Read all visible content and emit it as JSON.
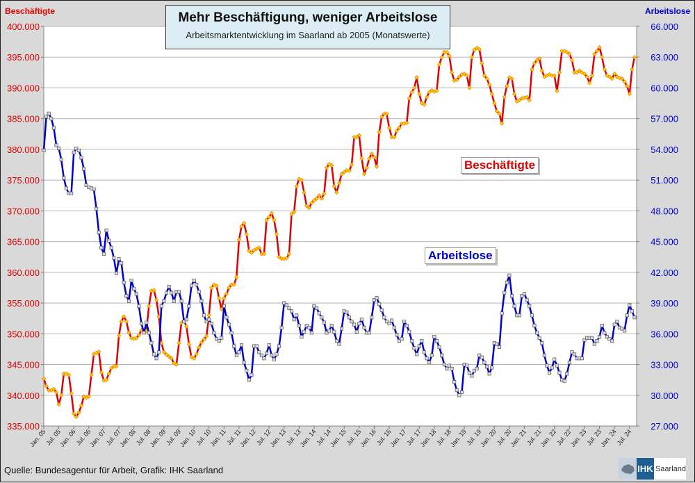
{
  "title": "Mehr Beschäftigung, weniger Arbeitslose",
  "subtitle": "Arbeitsmarktentwicklung im Saarland ab 2005 (Monatswerte)",
  "source": "Quelle: Bundesagentur für Arbeit, Grafik: IHK Saarland",
  "logo": {
    "ihk": "IHK",
    "region": "Saarland"
  },
  "chart_data": {
    "type": "line",
    "title": "Mehr Beschäftigung, weniger Arbeitslose",
    "subtitle": "Arbeitsmarktentwicklung im Saarland ab 2005 (Monatswerte)",
    "x_start": "2005-01",
    "x_frequency": "monthly",
    "x_tick_labels": [
      "Jan. 05",
      "Jul. 05",
      "Jan. 06",
      "Jul. 06",
      "Jan. 07",
      "Jul. 07",
      "Jan. 08",
      "Jul. 08",
      "Jan. 09",
      "Jul. 09",
      "Jan. 10",
      "Jul. 10",
      "Jan. 11",
      "Jul. 11",
      "Jan. 12",
      "Jul. 12",
      "Jan. 13",
      "Jul. 13",
      "Jan. 14",
      "Jul. 14",
      "Jan. 15",
      "Jul. 15",
      "Jan. 16",
      "Jul. 16",
      "Jan. 17",
      "Jul. 17",
      "Jan. 18",
      "Jul. 18",
      "Jan. 19",
      "Jul. 19",
      "Jan. 20",
      "Jul. 20",
      "Jan. 21",
      "Jul. 21",
      "Jan. 22",
      "Jul. 22",
      "Jan. 23",
      "Jul. 23",
      "Jan. 24",
      "Jul. 24"
    ],
    "value_unit_multiplier": 1000,
    "left_axis": {
      "label": "Beschäftigte",
      "range": [
        335000,
        400000
      ],
      "step": 5000,
      "ticks": [
        "335.000",
        "340.000",
        "345.000",
        "350.000",
        "355.000",
        "360.000",
        "365.000",
        "370.000",
        "375.000",
        "380.000",
        "385.000",
        "390.000",
        "395.000",
        "400.000"
      ]
    },
    "right_axis": {
      "label": "Arbeitslose",
      "range": [
        27000,
        66000
      ],
      "step": 3000,
      "ticks": [
        "27.000",
        "30.000",
        "33.000",
        "36.000",
        "39.000",
        "42.000",
        "45.000",
        "48.000",
        "51.000",
        "54.000",
        "57.000",
        "60.000",
        "63.000",
        "66.000"
      ]
    },
    "grid": true,
    "series": [
      {
        "name": "Beschäftigte",
        "label": "Beschäftigte",
        "axis": "left",
        "color": "#e00000",
        "marker_fill": "#ffd700",
        "marker_stroke": "#f08000",
        "values": [
          342.7,
          341.5,
          340.8,
          340.8,
          341.0,
          340.5,
          338.5,
          340.0,
          343.5,
          343.5,
          343.3,
          340.3,
          337.0,
          336.5,
          337.2,
          338.3,
          339.8,
          339.6,
          339.8,
          343.3,
          346.7,
          346.9,
          347.1,
          343.7,
          342.4,
          342.5,
          343.5,
          344.4,
          344.7,
          344.7,
          349.7,
          352.0,
          352.8,
          352.0,
          350.2,
          349.3,
          349.2,
          349.3,
          349.8,
          350.6,
          350.5,
          350.5,
          354.5,
          357.0,
          357.1,
          355.5,
          352.8,
          348.5,
          347.0,
          346.6,
          346.3,
          346.0,
          345.2,
          345.0,
          348.5,
          351.8,
          352.2,
          351.2,
          348.3,
          346.2,
          346.0,
          346.7,
          347.8,
          348.6,
          349.1,
          349.6,
          353.0,
          357.5,
          358.0,
          357.8,
          355.8,
          354.0,
          355.8,
          356.5,
          357.5,
          358.0,
          358.0,
          359.2,
          365.3,
          367.5,
          368.0,
          366.2,
          363.5,
          363.2,
          363.6,
          363.8,
          364.0,
          363.0,
          363.0,
          368.5,
          369.0,
          369.6,
          368.5,
          366.2,
          362.5,
          362.2,
          362.2,
          362.3,
          363.0,
          369.5,
          369.8,
          374.0,
          375.2,
          375.0,
          373.0,
          370.8,
          370.5,
          371.3,
          371.7,
          372.0,
          372.5,
          372.0,
          372.8,
          377.0,
          377.6,
          377.4,
          374.0,
          373.0,
          374.5,
          376.0,
          376.3,
          376.6,
          376.5,
          377.5,
          382.0,
          382.0,
          382.3,
          378.5,
          376.0,
          377.0,
          378.5,
          379.3,
          378.7,
          377.2,
          382.8,
          385.3,
          385.8,
          385.8,
          383.5,
          382.0,
          382.0,
          383.0,
          383.5,
          384.2,
          384.2,
          384.3,
          388.3,
          389.3,
          390.0,
          391.7,
          389.0,
          387.5,
          387.3,
          388.5,
          389.3,
          389.6,
          389.4,
          389.5,
          393.8,
          395.0,
          395.8,
          395.8,
          395.2,
          392.5,
          391.2,
          391.3,
          391.8,
          392.2,
          392.3,
          392.0,
          390.0,
          395.0,
          396.2,
          396.5,
          396.3,
          394.0,
          392.0,
          391.5,
          390.5,
          389.0,
          387.5,
          386.2,
          385.8,
          384.2,
          388.5,
          390.3,
          391.7,
          391.5,
          389.0,
          387.8,
          388.0,
          388.3,
          388.4,
          388.5,
          388.0,
          393.0,
          394.0,
          394.5,
          394.8,
          392.8,
          391.8,
          392.0,
          392.2,
          392.0,
          392.0,
          389.5,
          392.5,
          396.0,
          396.0,
          395.8,
          395.5,
          394.5,
          392.5,
          392.5,
          392.8,
          392.5,
          392.3,
          391.8,
          390.8,
          392.0,
          395.5,
          396.0,
          396.6,
          395.0,
          393.0,
          392.0,
          391.8,
          391.5,
          392.3,
          391.8,
          391.6,
          391.5,
          391.0,
          390.3,
          389.0,
          393.0,
          395.0
        ]
      },
      {
        "name": "Arbeitslose",
        "label": "Arbeitslose",
        "axis": "right",
        "color": "#0000cc",
        "marker_fill": "#d8d8e0",
        "marker_stroke": "#555555",
        "values": [
          53.9,
          57.2,
          57.5,
          57.0,
          56.1,
          54.4,
          54.1,
          53.0,
          51.2,
          50.2,
          49.7,
          49.7,
          53.7,
          54.1,
          53.9,
          53.2,
          52.1,
          50.5,
          50.3,
          50.2,
          50.1,
          48.2,
          45.9,
          44.4,
          43.8,
          46.1,
          45.1,
          44.4,
          43.4,
          41.9,
          43.3,
          42.9,
          41.0,
          39.7,
          39.2,
          41.2,
          40.4,
          39.9,
          38.7,
          37.0,
          36.1,
          37.1,
          36.1,
          35.1,
          34.0,
          33.6,
          34.2,
          38.7,
          39.2,
          40.0,
          40.6,
          40.0,
          39.2,
          40.1,
          40.1,
          39.2,
          37.2,
          37.4,
          38.7,
          40.7,
          41.2,
          40.8,
          40.1,
          39.2,
          37.8,
          37.2,
          37.4,
          37.0,
          36.1,
          35.5,
          35.3,
          35.6,
          38.7,
          37.6,
          36.9,
          36.1,
          34.8,
          33.9,
          34.2,
          34.9,
          33.2,
          32.4,
          31.5,
          32.0,
          34.8,
          34.8,
          34.2,
          33.9,
          33.6,
          34.1,
          34.9,
          33.9,
          33.5,
          34.0,
          34.8,
          36.6,
          39.0,
          38.8,
          38.5,
          38.2,
          37.4,
          37.8,
          36.8,
          35.7,
          36.2,
          36.8,
          36.6,
          36.1,
          38.7,
          38.5,
          38.0,
          37.6,
          37.1,
          36.1,
          36.3,
          36.8,
          36.2,
          35.3,
          35.0,
          36.5,
          38.2,
          38.1,
          37.6,
          37.2,
          36.9,
          36.2,
          37.0,
          37.4,
          36.6,
          36.1,
          36.1,
          37.6,
          39.3,
          39.5,
          38.9,
          38.3,
          37.6,
          37.2,
          37.0,
          37.3,
          36.6,
          35.9,
          35.3,
          35.5,
          37.2,
          36.8,
          36.2,
          35.3,
          34.6,
          34.0,
          34.8,
          35.3,
          34.2,
          33.6,
          33.2,
          33.9,
          35.7,
          35.3,
          34.7,
          33.9,
          33.0,
          32.6,
          32.9,
          32.6,
          31.3,
          30.5,
          30.0,
          30.3,
          33.0,
          32.9,
          32.2,
          31.9,
          32.4,
          32.6,
          33.9,
          33.7,
          33.2,
          32.8,
          32.1,
          32.7,
          35.1,
          35.0,
          34.7,
          38.0,
          40.0,
          41.0,
          41.7,
          39.7,
          38.7,
          37.8,
          37.8,
          39.7,
          39.9,
          39.3,
          38.7,
          37.8,
          36.8,
          36.1,
          35.6,
          35.1,
          33.9,
          32.9,
          32.2,
          32.7,
          33.5,
          32.9,
          32.2,
          31.5,
          31.4,
          32.1,
          33.2,
          34.2,
          34.0,
          33.6,
          33.6,
          33.6,
          35.4,
          35.6,
          35.6,
          35.6,
          35.0,
          35.3,
          35.7,
          36.8,
          36.1,
          35.7,
          35.5,
          35.3,
          36.9,
          37.2,
          36.6,
          36.5,
          36.3,
          37.8,
          38.8,
          38.2,
          37.6
        ]
      }
    ]
  }
}
